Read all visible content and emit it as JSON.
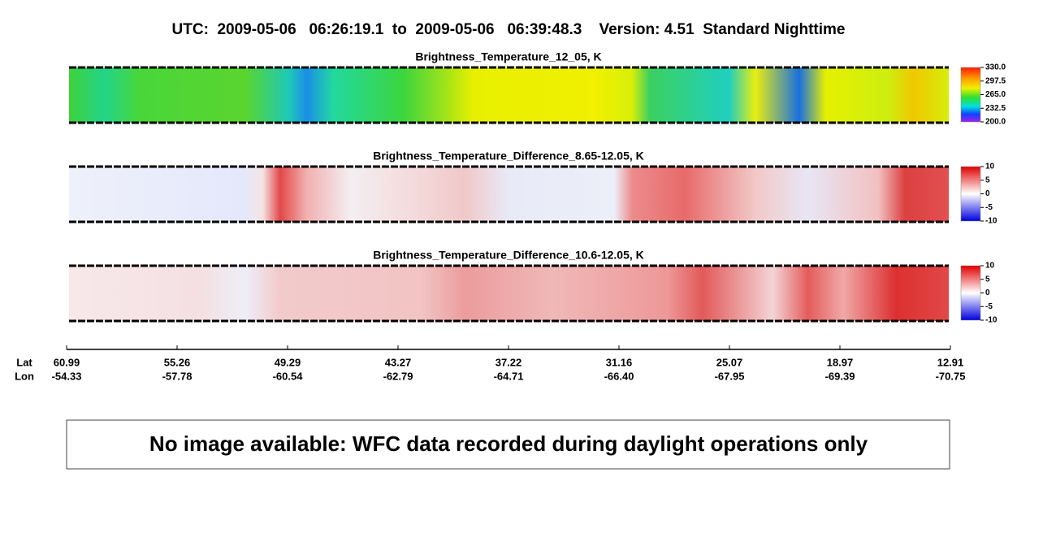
{
  "header": {
    "title": "UTC:  2009-05-06   06:26:19.1  to  2009-05-06   06:39:48.3    Version: 4.51  Standard Nighttime"
  },
  "panels": [
    {
      "title": "Brightness_Temperature_12_05, K",
      "clim": [
        200,
        330
      ],
      "ticks": [
        {
          "value": 330,
          "label": "330.0"
        },
        {
          "value": 297.5,
          "label": "297.5"
        },
        {
          "value": 265,
          "label": "265.0"
        },
        {
          "value": 232.5,
          "label": "232.5"
        },
        {
          "value": 200,
          "label": "200.0"
        }
      ]
    },
    {
      "title": "Brightness_Temperature_Difference_8.65-12.05, K",
      "clim": [
        -10,
        10
      ],
      "ticks": [
        10,
        5,
        0,
        -5,
        -10
      ]
    },
    {
      "title": "Brightness_Temperature_Difference_10.6-12.05, K",
      "clim": [
        -10,
        10
      ],
      "ticks": [
        10,
        5,
        0,
        -5,
        -10
      ]
    }
  ],
  "axis": {
    "lat_label": "Lat",
    "lon_label": "Lon",
    "lat": [
      "60.99",
      "55.26",
      "49.29",
      "43.27",
      "37.22",
      "31.16",
      "25.07",
      "18.97",
      "12.91"
    ],
    "lon": [
      "-54.33",
      "-57.78",
      "-60.54",
      "-62.79",
      "-64.71",
      "-66.40",
      "-67.95",
      "-69.39",
      "-70.75"
    ]
  },
  "message": "No image available: WFC data recorded during daylight operations only"
}
